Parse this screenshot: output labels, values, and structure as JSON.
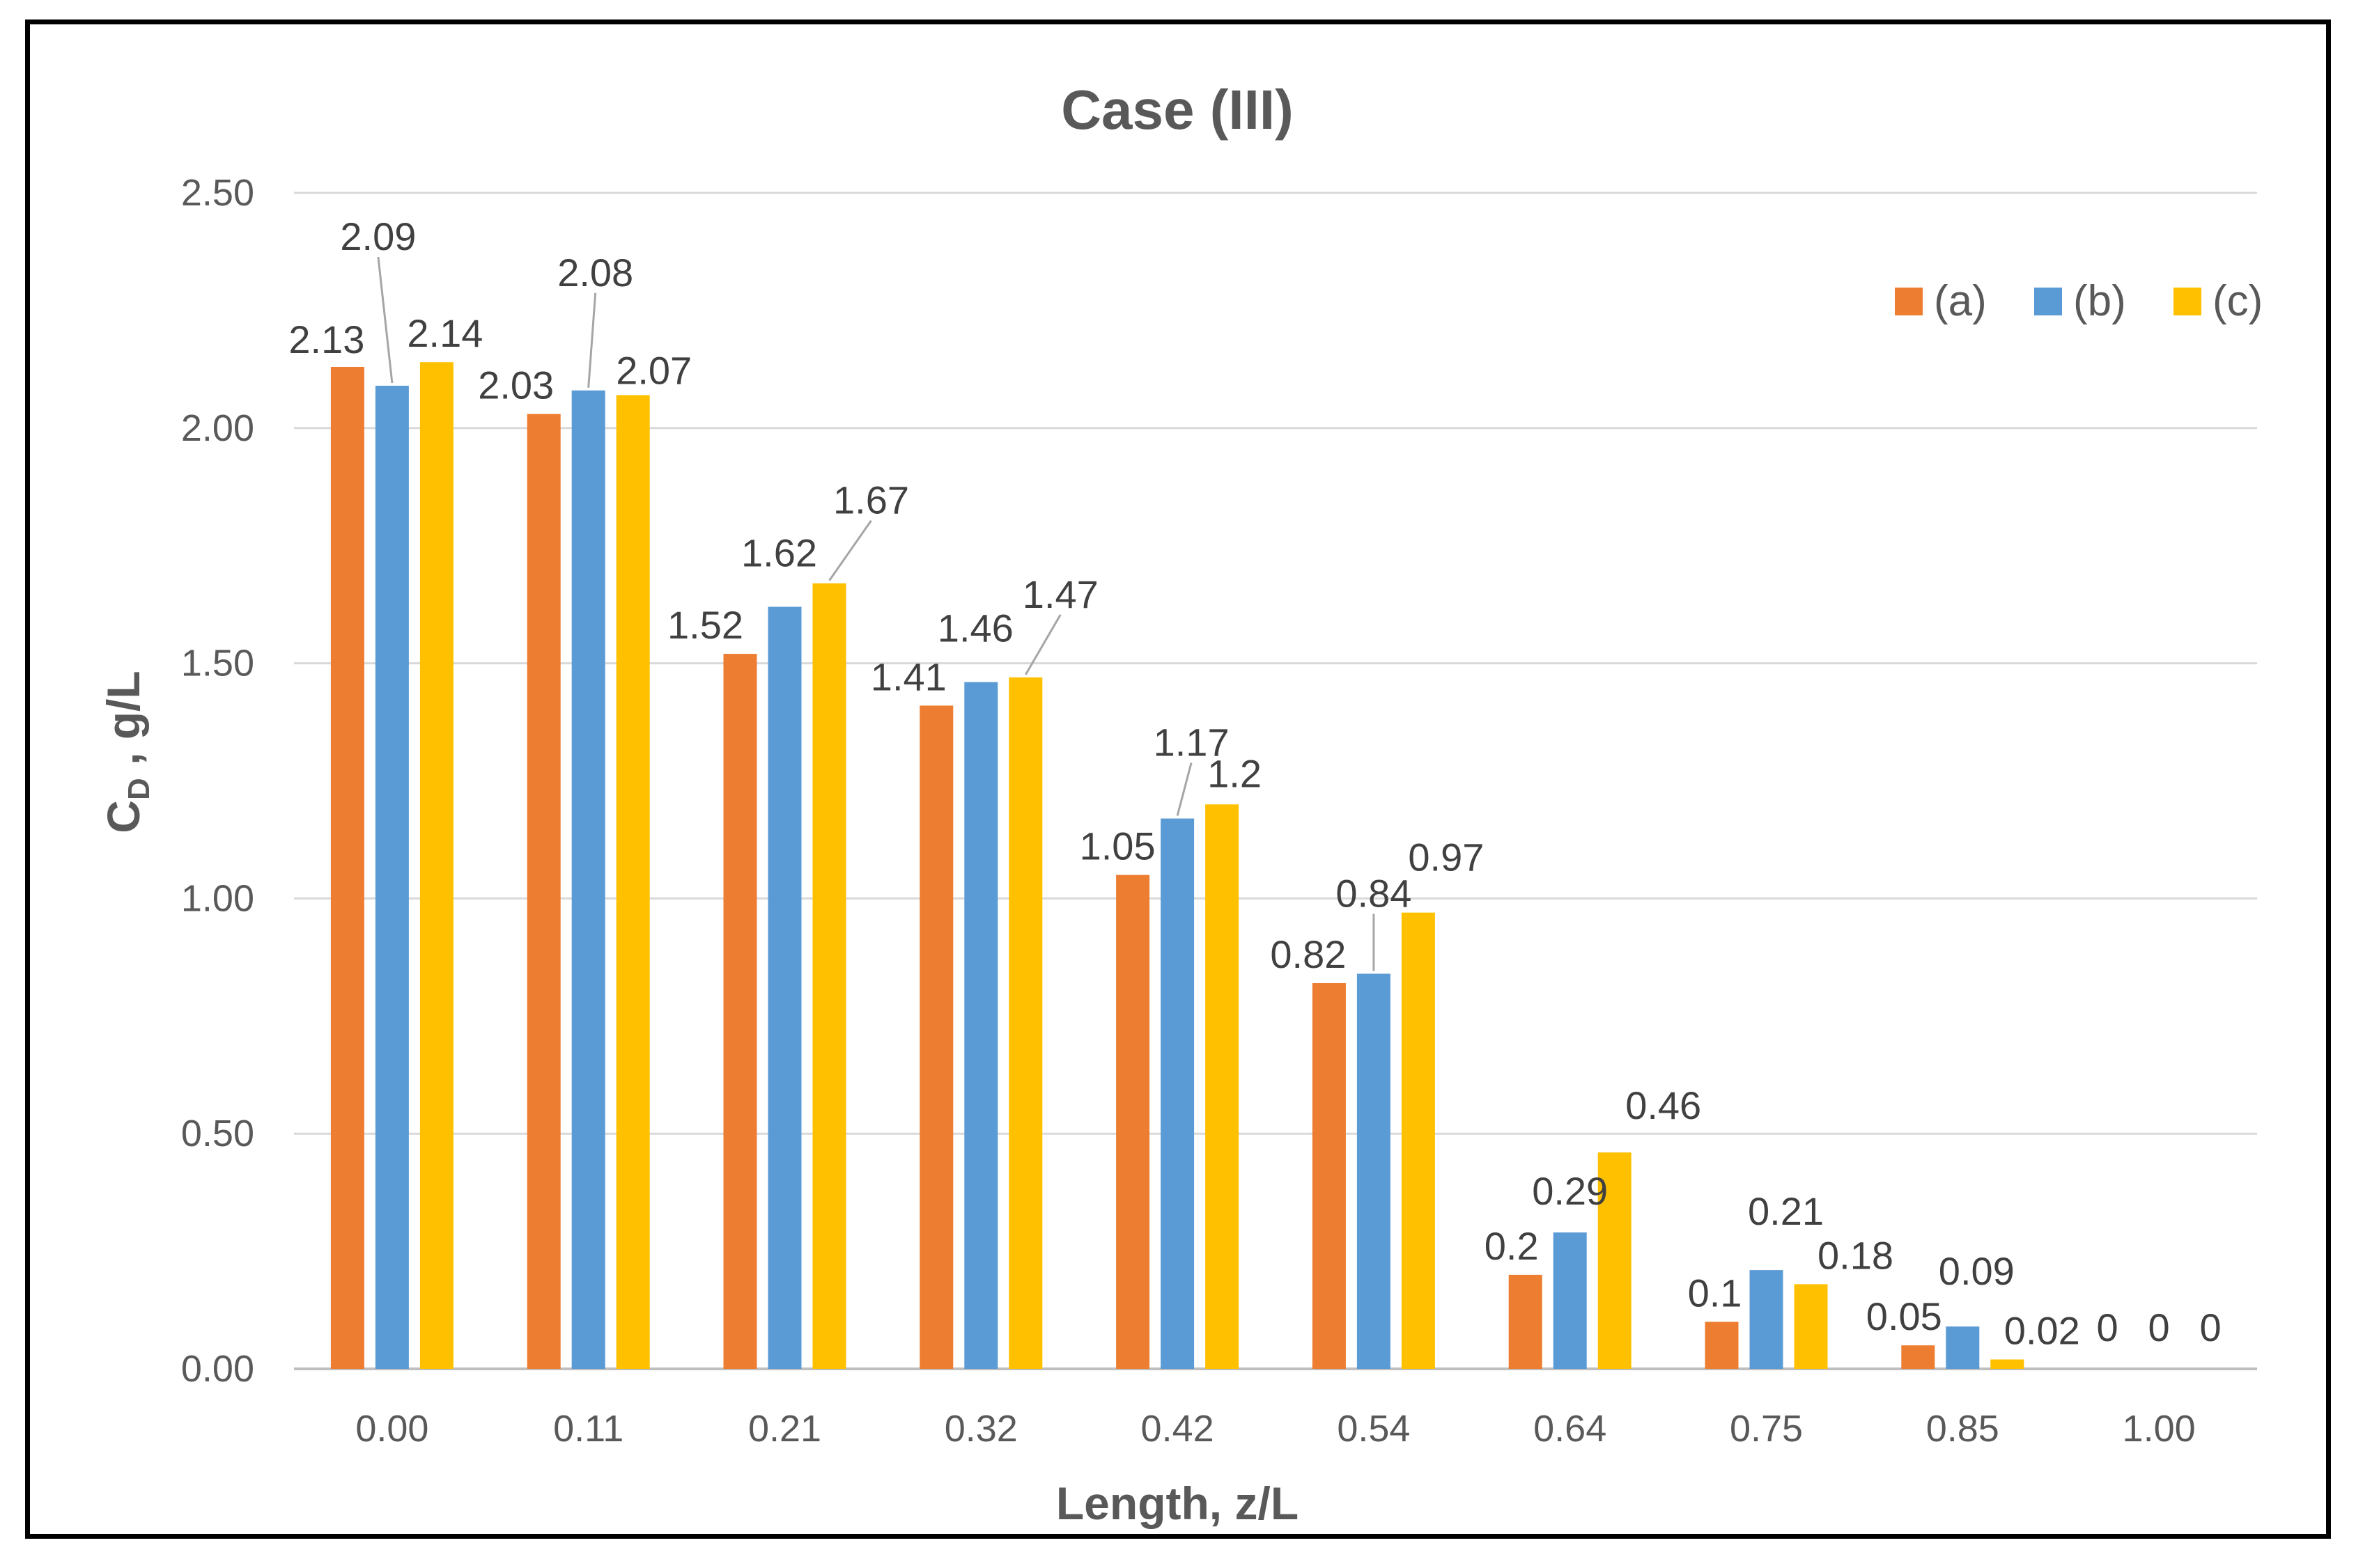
{
  "chart_data": {
    "type": "bar",
    "title": "Case (III)",
    "xlabel": "Length, z/L",
    "ylabel_main": "C",
    "ylabel_sub": "D",
    "ylabel_rest": " , g/L",
    "ylim": [
      0,
      2.5
    ],
    "yticks": [
      "0.00",
      "0.50",
      "1.00",
      "1.50",
      "2.00",
      "2.50"
    ],
    "categories": [
      "0.00",
      "0.11",
      "0.21",
      "0.32",
      "0.42",
      "0.54",
      "0.64",
      "0.75",
      "0.85",
      "1.00"
    ],
    "series": [
      {
        "name": "(a)",
        "color": "#ED7D31",
        "values": [
          2.13,
          2.03,
          1.52,
          1.41,
          1.05,
          0.82,
          0.2,
          0.1,
          0.05,
          0
        ],
        "labels": [
          "2.13",
          "2.03",
          "1.52",
          "1.41",
          "1.05",
          "0.82",
          "0.2",
          "0.1",
          "0.05",
          "0"
        ]
      },
      {
        "name": "(b)",
        "color": "#5B9BD5",
        "values": [
          2.09,
          2.08,
          1.62,
          1.46,
          1.17,
          0.84,
          0.29,
          0.21,
          0.09,
          0
        ],
        "labels": [
          "2.09",
          "2.08",
          "1.62",
          "1.46",
          "1.17",
          "0.84",
          "0.29",
          "0.21",
          "0.09",
          "0"
        ]
      },
      {
        "name": "(c)",
        "color": "#FFC000",
        "values": [
          2.14,
          2.07,
          1.67,
          1.47,
          1.2,
          0.97,
          0.46,
          0.18,
          0.02,
          0
        ],
        "labels": [
          "2.14",
          "2.07",
          "1.67",
          "1.47",
          "1.2",
          "0.97",
          "0.46",
          "0.18",
          "0.02",
          "0"
        ]
      }
    ],
    "grid": true,
    "legend": "top-right"
  }
}
